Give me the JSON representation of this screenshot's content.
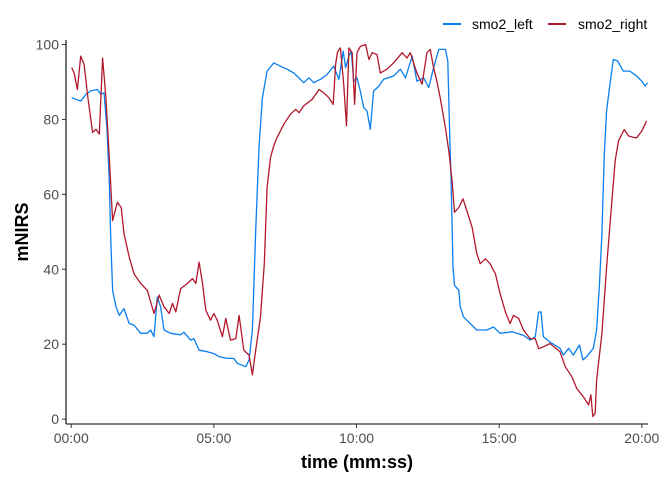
{
  "chart_data": {
    "type": "line",
    "title": "",
    "xlabel": "time (mm:ss)",
    "ylabel": "mNIRS",
    "xlim": [
      "-00:11",
      "20:13"
    ],
    "ylim": [
      -1.3,
      101.2
    ],
    "x_ticks": [
      "00:00",
      "05:00",
      "10:00",
      "15:00",
      "20:00"
    ],
    "y_ticks": [
      0,
      20,
      40,
      60,
      80,
      100
    ],
    "grid": false,
    "legend_position": "top-right",
    "series": [
      {
        "name": "smo2_left",
        "color": "#0A7FF0",
        "x": [
          "00:01",
          "00:20",
          "00:31",
          "00:41",
          "00:55",
          "01:02",
          "01:09",
          "01:15",
          "01:20",
          "01:23",
          "01:27",
          "01:34",
          "01:41",
          "01:51",
          "02:02",
          "02:12",
          "02:26",
          "02:40",
          "02:47",
          "02:54",
          "03:01",
          "03:08",
          "03:15",
          "03:29",
          "03:50",
          "03:57",
          "04:11",
          "04:18",
          "04:29",
          "04:46",
          "05:00",
          "05:11",
          "05:28",
          "05:42",
          "05:49",
          "06:07",
          "06:14",
          "06:21",
          "06:28",
          "06:35",
          "06:42",
          "06:52",
          "07:06",
          "07:20",
          "07:34",
          "07:48",
          "08:09",
          "08:20",
          "08:30",
          "08:44",
          "08:58",
          "09:12",
          "09:23",
          "09:32",
          "09:37",
          "09:44",
          "09:49",
          "09:54",
          "10:01",
          "10:08",
          "10:15",
          "10:22",
          "10:29",
          "10:36",
          "10:47",
          "10:57",
          "11:18",
          "11:32",
          "11:43",
          "11:57",
          "12:07",
          "12:21",
          "12:32",
          "12:42",
          "12:53",
          "13:07",
          "13:12",
          "13:16",
          "13:19",
          "13:23",
          "13:26",
          "13:35",
          "13:38",
          "13:45",
          "13:59",
          "14:13",
          "14:34",
          "14:48",
          "15:02",
          "15:27",
          "15:51",
          "16:05",
          "16:16",
          "16:23",
          "16:28",
          "16:33",
          "16:47",
          "17:08",
          "17:15",
          "17:26",
          "17:36",
          "17:49",
          "17:56",
          "18:04",
          "18:18",
          "18:25",
          "18:31",
          "18:36",
          "18:41",
          "18:46",
          "18:52",
          "19:00",
          "19:09",
          "19:21",
          "19:35",
          "19:49",
          "20:00",
          "20:07",
          "20:12"
        ],
        "values": [
          85.8,
          84.9,
          86.7,
          87.6,
          88,
          86.7,
          87.1,
          77.8,
          63.6,
          48.6,
          34.4,
          30,
          27.7,
          29.5,
          25.5,
          25.1,
          22.9,
          22.9,
          23.8,
          22,
          32.6,
          30,
          23.8,
          22.9,
          22.5,
          23.2,
          21.1,
          21.5,
          18.4,
          18,
          17.5,
          16.7,
          16.2,
          16.2,
          14.9,
          14,
          15.8,
          23.8,
          50.3,
          72.5,
          85.8,
          92.9,
          95.1,
          94.2,
          93.4,
          92.4,
          89.8,
          91.1,
          89.8,
          90.7,
          92,
          94.2,
          90.7,
          98.2,
          93.8,
          96.9,
          98.2,
          90.2,
          91.1,
          87.6,
          83.1,
          82.3,
          77.4,
          87.6,
          88.9,
          90.7,
          91.6,
          93.4,
          91.1,
          96.9,
          90.2,
          91.1,
          88.5,
          93.8,
          98.7,
          98.7,
          95.6,
          76.1,
          63.6,
          40.6,
          35.7,
          34.4,
          30,
          27.3,
          25.5,
          23.8,
          23.8,
          24.6,
          22.9,
          23.3,
          22.4,
          21.1,
          22,
          28.6,
          28.6,
          22,
          20.6,
          18.9,
          17.1,
          18.9,
          17.1,
          19.8,
          15.8,
          16.7,
          18.9,
          23.8,
          36.2,
          49.5,
          70.7,
          82.3,
          88.5,
          96,
          95.6,
          92.9,
          92.9,
          91.6,
          90.2,
          88.9,
          89.8
        ]
      },
      {
        "name": "smo2_right",
        "color": "#B2182B",
        "x": [
          "00:01",
          "00:06",
          "00:13",
          "00:20",
          "00:27",
          "00:35",
          "00:45",
          "00:52",
          "00:59",
          "01:06",
          "01:13",
          "01:20",
          "01:27",
          "01:37",
          "01:45",
          "01:51",
          "02:02",
          "02:12",
          "02:26",
          "02:40",
          "02:54",
          "03:05",
          "03:15",
          "03:26",
          "03:33",
          "03:40",
          "03:50",
          "04:04",
          "04:15",
          "04:22",
          "04:29",
          "04:36",
          "04:43",
          "04:53",
          "05:00",
          "05:07",
          "05:18",
          "05:25",
          "05:35",
          "05:46",
          "05:53",
          "06:03",
          "06:14",
          "06:21",
          "06:28",
          "06:38",
          "06:46",
          "06:52",
          "06:59",
          "07:06",
          "07:13",
          "07:27",
          "07:41",
          "07:52",
          "07:59",
          "08:09",
          "08:27",
          "08:41",
          "08:51",
          "09:02",
          "09:11",
          "09:16",
          "09:20",
          "09:26",
          "09:33",
          "09:39",
          "09:44",
          "09:51",
          "09:56",
          "10:01",
          "10:08",
          "10:19",
          "10:26",
          "10:33",
          "10:43",
          "10:50",
          "11:04",
          "11:18",
          "11:36",
          "11:46",
          "11:53",
          "12:07",
          "12:18",
          "12:28",
          "12:35",
          "12:42",
          "12:49",
          "12:56",
          "13:07",
          "13:14",
          "13:21",
          "13:26",
          "13:35",
          "13:44",
          "13:52",
          "14:03",
          "14:13",
          "14:20",
          "14:31",
          "14:41",
          "14:52",
          "15:02",
          "15:13",
          "15:23",
          "15:30",
          "15:41",
          "15:51",
          "16:05",
          "16:16",
          "16:23",
          "16:33",
          "16:47",
          "17:08",
          "17:19",
          "17:33",
          "17:43",
          "17:57",
          "18:08",
          "18:13",
          "18:17",
          "18:22",
          "18:25",
          "18:36",
          "18:46",
          "18:57",
          "19:04",
          "19:11",
          "19:23",
          "19:32",
          "19:42",
          "19:49",
          "20:00",
          "20:10"
        ],
        "values": [
          93.8,
          92.4,
          88,
          96.9,
          94.7,
          85.8,
          76.5,
          77.4,
          76.1,
          96.4,
          85.8,
          69.8,
          53,
          57.9,
          56.5,
          49.5,
          43.3,
          38.8,
          36.2,
          34.4,
          28.2,
          33.1,
          30,
          28.2,
          30.9,
          28.6,
          34.8,
          36.2,
          37.5,
          36.2,
          41.9,
          36.2,
          29.1,
          26.4,
          28.2,
          26.4,
          22,
          26.9,
          21.1,
          21.5,
          27.7,
          18.4,
          17.1,
          11.8,
          18.4,
          27.3,
          41.5,
          61.9,
          69.8,
          73,
          75.2,
          78.7,
          81.4,
          82.7,
          81.8,
          83.6,
          85.4,
          88,
          87.1,
          85.8,
          84,
          94.7,
          98,
          99.1,
          89.4,
          78.3,
          99.1,
          97.8,
          84,
          97.8,
          99.5,
          100,
          96,
          97.8,
          97.3,
          92.4,
          93.4,
          95.1,
          97.8,
          96.4,
          97.8,
          92.4,
          89.4,
          97.8,
          98.7,
          93.8,
          90.2,
          85.8,
          77.8,
          71.6,
          63.6,
          55.2,
          56.5,
          58.8,
          55.7,
          51.2,
          44.2,
          41.5,
          42.8,
          41.5,
          38.8,
          33.5,
          28.6,
          25.5,
          27.7,
          26.9,
          23.8,
          21.5,
          21.5,
          18.8,
          19.3,
          20.2,
          18,
          14,
          11.3,
          8.2,
          6,
          3.8,
          6.5,
          0.7,
          1.6,
          10.4,
          22.8,
          40.6,
          58.3,
          69,
          74.3,
          77.3,
          75.6,
          75.2,
          75.1,
          76.9,
          79.6
        ]
      }
    ]
  }
}
